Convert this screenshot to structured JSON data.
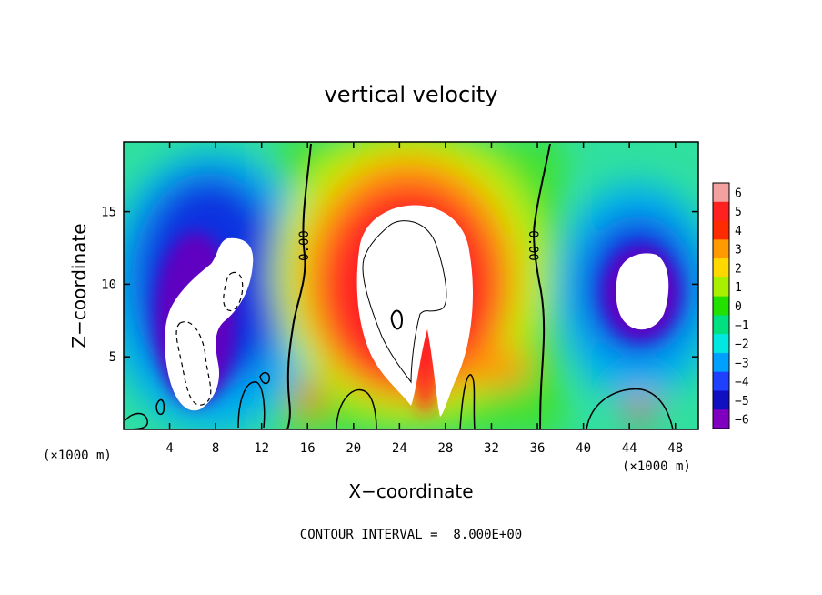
{
  "chart_data": {
    "type": "heatmap",
    "title": "vertical velocity",
    "xlabel": "X−coordinate",
    "ylabel": "Z−coordinate",
    "x_unit": "(×1000 m)",
    "y_unit": "(×1000 m)",
    "xlim": [
      0,
      50
    ],
    "ylim": [
      0,
      19.8
    ],
    "x_ticks": [
      4,
      8,
      12,
      16,
      20,
      24,
      28,
      32,
      36,
      40,
      44,
      48
    ],
    "y_ticks": [
      5,
      10,
      15
    ],
    "x_tick_labels": [
      "4",
      "8",
      "12",
      "16",
      "20",
      "24",
      "28",
      "32",
      "36",
      "40",
      "44",
      "48"
    ],
    "y_tick_labels": [
      "5",
      "10",
      "15"
    ],
    "colorbar": {
      "range": [
        -6,
        6
      ],
      "levels": [
        6,
        5,
        4,
        3,
        2,
        1,
        0,
        -1,
        -2,
        -3,
        -4,
        -5,
        -6
      ],
      "labels": [
        "6",
        "5",
        "4",
        "3",
        "2",
        "1",
        "0",
        "−1",
        "−2",
        "−3",
        "−4",
        "−5",
        "−6"
      ],
      "colors": [
        "#f2a0a0",
        "#ff2020",
        "#ff2b00",
        "#ff9a00",
        "#ffd800",
        "#a8f000",
        "#22e000",
        "#00e080",
        "#00e8e0",
        "#00a0ff",
        "#2040ff",
        "#1010c0",
        "#8000c0"
      ]
    },
    "contour_labels": [
      "0.00",
      "0.00"
    ],
    "contour_interval_text": "CONTOUR INTERVAL =  8.000E+00",
    "features": [
      {
        "kind": "updraft",
        "x": 24.5,
        "z": 10.0,
        "peak": "> 6"
      },
      {
        "kind": "downdraft",
        "x": 7.5,
        "z": 9.0,
        "peak": "< -6"
      },
      {
        "kind": "downdraft",
        "x": 45.0,
        "z": 10.0,
        "peak": "< -6"
      }
    ]
  }
}
